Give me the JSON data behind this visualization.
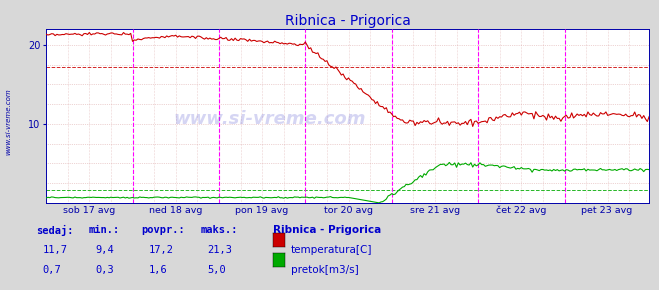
{
  "title": "Ribnica - Prigorica",
  "title_color": "#0000cc",
  "bg_color": "#d8d8d8",
  "plot_bg_color": "#ffffff",
  "ylim": [
    0,
    22
  ],
  "yticks": [
    10,
    20
  ],
  "label_color": "#0000aa",
  "days": [
    "sob 17 avg",
    "ned 18 avg",
    "pon 19 avg",
    "tor 20 avg",
    "sre 21 avg",
    "čet 22 avg",
    "pet 23 avg"
  ],
  "n_days": 7,
  "temp_avg": 17.2,
  "flow_avg": 1.6,
  "temp_color": "#cc0000",
  "flow_color": "#00aa00",
  "vline_color": "#ff00ff",
  "hgrid_color": "#ddaaaa",
  "vgrid_color": "#ddaaaa",
  "watermark": "www.si-vreme.com",
  "legend_title": "Ribnica - Prigorica",
  "legend_items": [
    "temperatura[C]",
    "pretok[m3/s]"
  ],
  "table_headers": [
    "sedaj:",
    "min.:",
    "povpr.:",
    "maks.:"
  ],
  "table_temp": [
    "11,7",
    "9,4",
    "17,2",
    "21,3"
  ],
  "table_flow": [
    "0,7",
    "0,3",
    "1,6",
    "5,0"
  ],
  "table_color": "#0000cc",
  "n_points": 336,
  "pts_per_day": 48
}
